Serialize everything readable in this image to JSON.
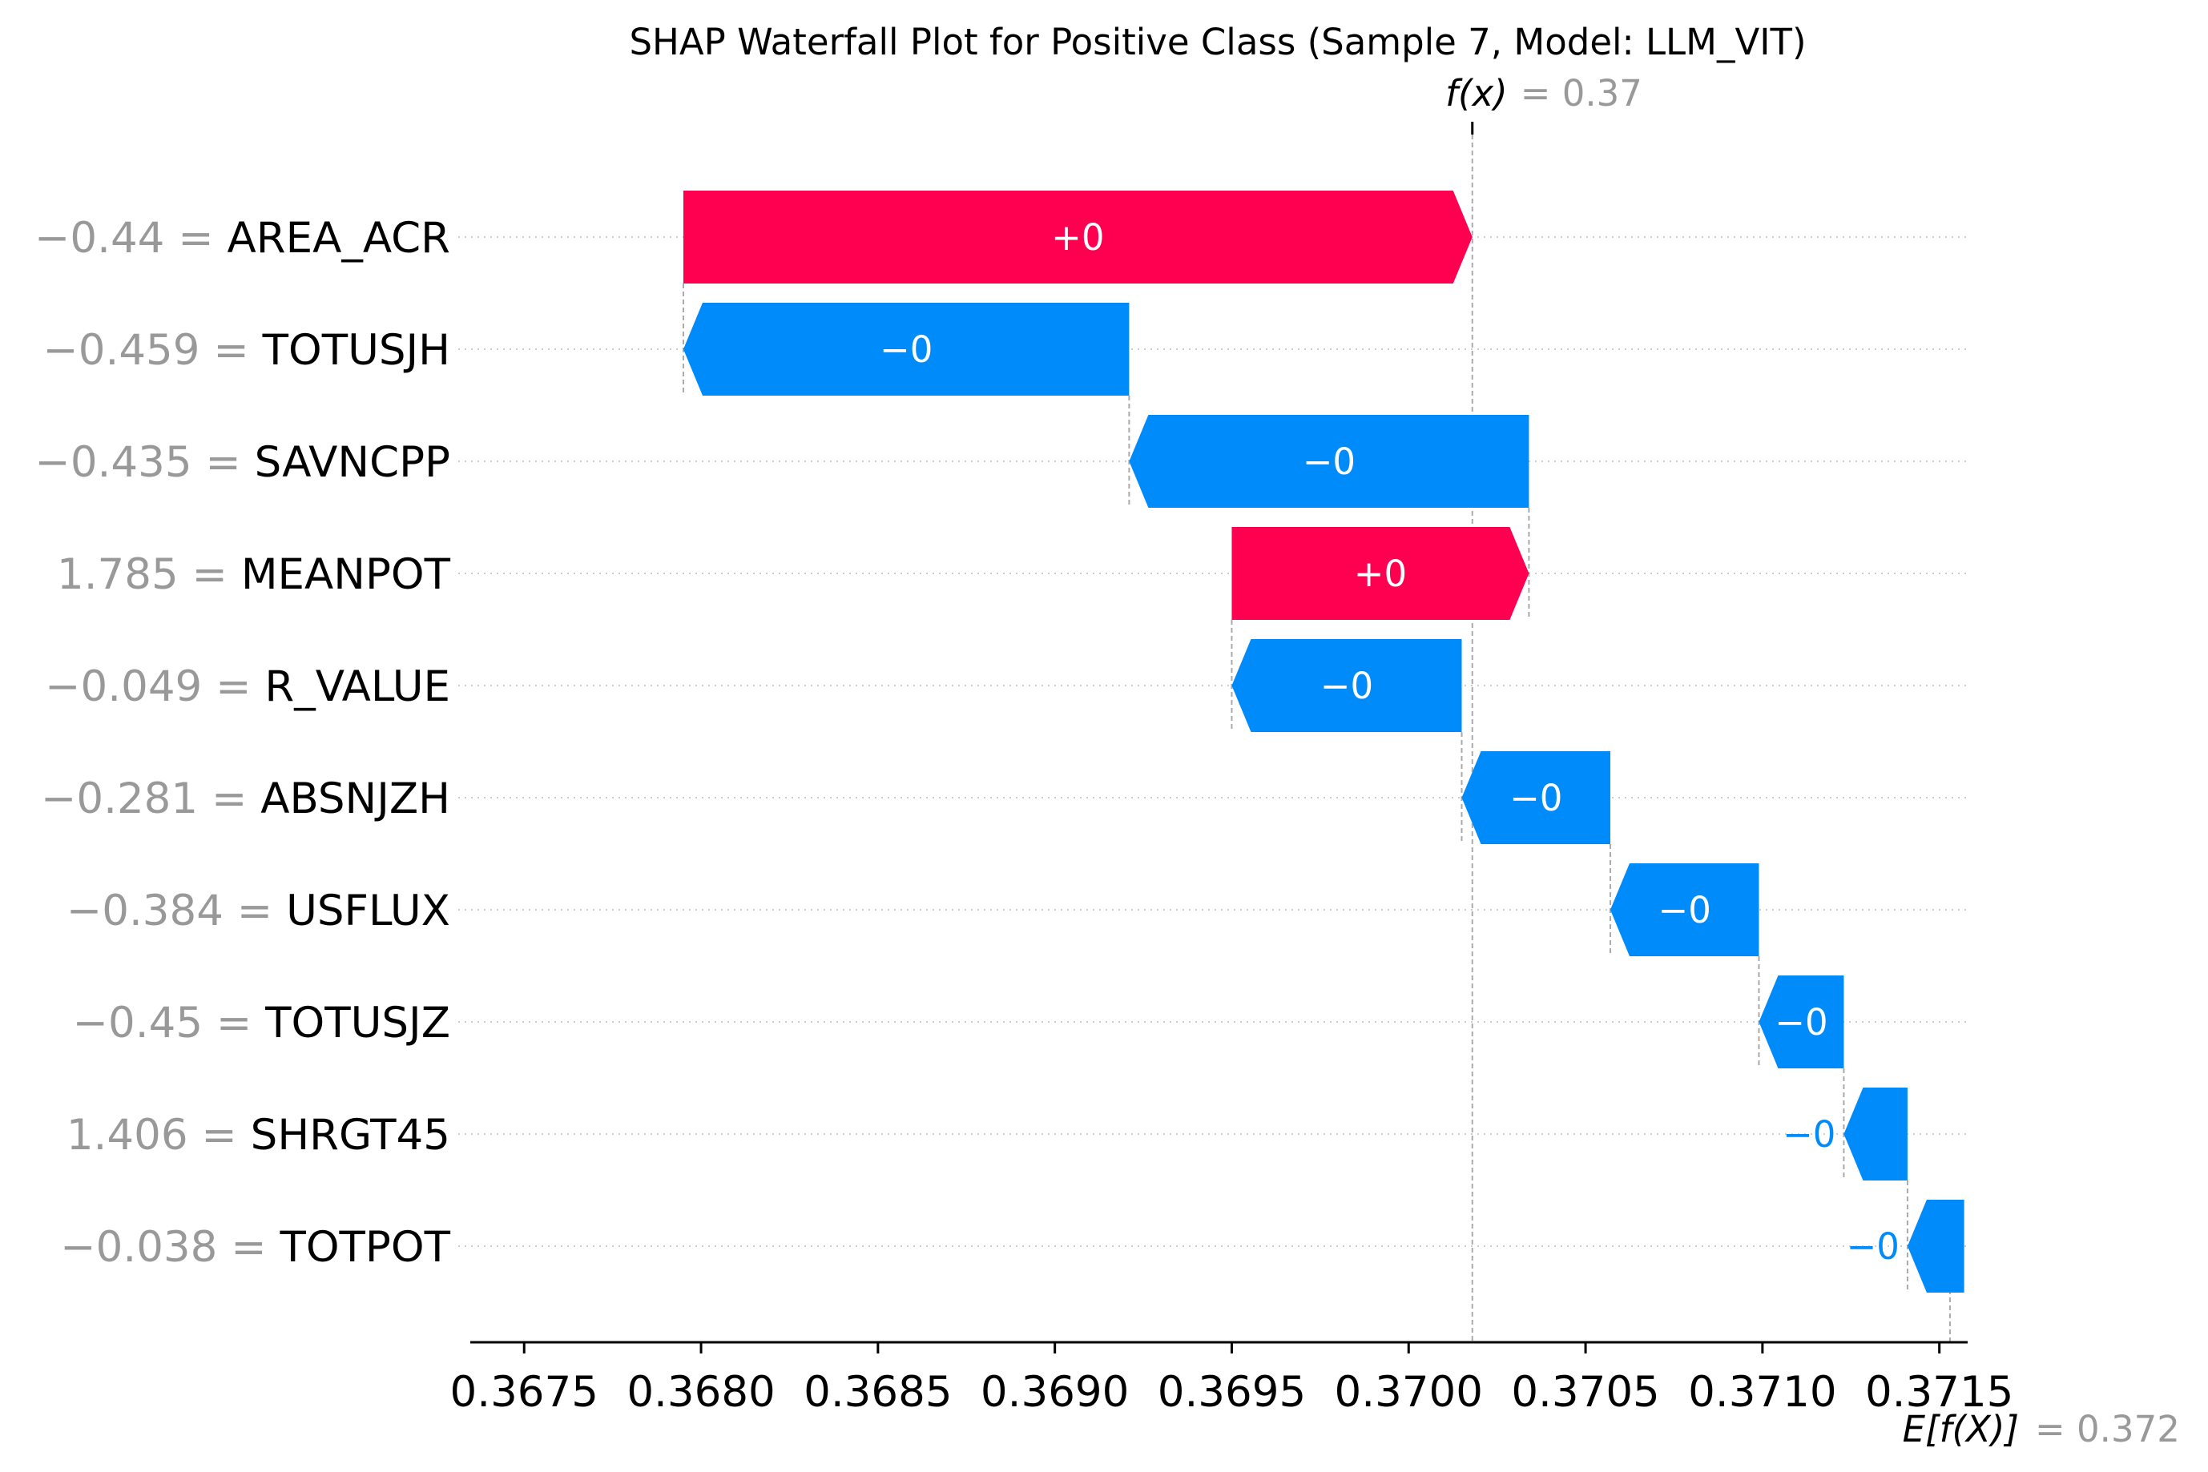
{
  "chart_data": {
    "type": "waterfall",
    "title": "SHAP Waterfall Plot for Positive Class (Sample 7, Model: LLM_VIT)",
    "fx": {
      "label": "f(x)",
      "value_text": "= 0.37",
      "value": 0.37018
    },
    "expected": {
      "label": "E[f(X)]",
      "value_text": "= 0.372",
      "value": 0.37153
    },
    "xlim": [
      0.36735,
      0.37158
    ],
    "xticks": [
      {
        "value": 0.3675,
        "label": "0.3675"
      },
      {
        "value": 0.368,
        "label": "0.3680"
      },
      {
        "value": 0.3685,
        "label": "0.3685"
      },
      {
        "value": 0.369,
        "label": "0.3690"
      },
      {
        "value": 0.3695,
        "label": "0.3695"
      },
      {
        "value": 0.37,
        "label": "0.3700"
      },
      {
        "value": 0.3705,
        "label": "0.3705"
      },
      {
        "value": 0.371,
        "label": "0.3710"
      },
      {
        "value": 0.3715,
        "label": "0.3715"
      }
    ],
    "colors": {
      "positive": "#ff0051",
      "negative": "#008bfb",
      "grid": "#cccccc",
      "axis": "#000000"
    },
    "features": [
      {
        "value_text": "−0.44 =",
        "name": "AREA_ACR",
        "start": 0.36795,
        "end": 0.37018,
        "label": "+0",
        "sign": "positive"
      },
      {
        "value_text": "−0.459 =",
        "name": "TOTUSJH",
        "start": 0.36921,
        "end": 0.36795,
        "label": "−0",
        "sign": "negative"
      },
      {
        "value_text": "−0.435 =",
        "name": "SAVNCPP",
        "start": 0.37034,
        "end": 0.36921,
        "label": "−0",
        "sign": "negative"
      },
      {
        "value_text": "1.785 =",
        "name": "MEANPOT",
        "start": 0.3695,
        "end": 0.37034,
        "label": "+0",
        "sign": "positive"
      },
      {
        "value_text": "−0.049 =",
        "name": "R_VALUE",
        "start": 0.37015,
        "end": 0.3695,
        "label": "−0",
        "sign": "negative"
      },
      {
        "value_text": "−0.281 =",
        "name": "ABSNJZH",
        "start": 0.37057,
        "end": 0.37015,
        "label": "−0",
        "sign": "negative"
      },
      {
        "value_text": "−0.384 =",
        "name": "USFLUX",
        "start": 0.37099,
        "end": 0.37057,
        "label": "−0",
        "sign": "negative"
      },
      {
        "value_text": "−0.45 =",
        "name": "TOTUSJZ",
        "start": 0.37123,
        "end": 0.37099,
        "label": "−0",
        "sign": "negative"
      },
      {
        "value_text": "1.406 =",
        "name": "SHRGT45",
        "start": 0.37141,
        "end": 0.37123,
        "label": "−0",
        "sign": "negative"
      },
      {
        "value_text": "−0.038 =",
        "name": "TOTPOT",
        "start": 0.37157,
        "end": 0.37141,
        "label": "−0",
        "sign": "negative"
      }
    ]
  }
}
